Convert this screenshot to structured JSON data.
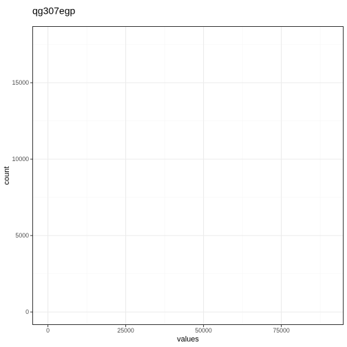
{
  "chart_data": {
    "type": "bar",
    "title": "qg307egp",
    "xlabel": "values",
    "ylabel": "count",
    "x_ticks": [
      0,
      25000,
      50000,
      75000
    ],
    "y_ticks": [
      0,
      5000,
      10000,
      15000
    ],
    "xlim": [
      -5000,
      95000
    ],
    "ylim": [
      -850,
      18700
    ],
    "grid": true,
    "categories": [],
    "values": [],
    "colors": {
      "panel_border": "#333333",
      "grid_major": "#ebebeb",
      "grid_minor": "#f5f5f5",
      "tick": "#333333",
      "tick_label": "#4d4d4d",
      "text": "#000000"
    }
  }
}
